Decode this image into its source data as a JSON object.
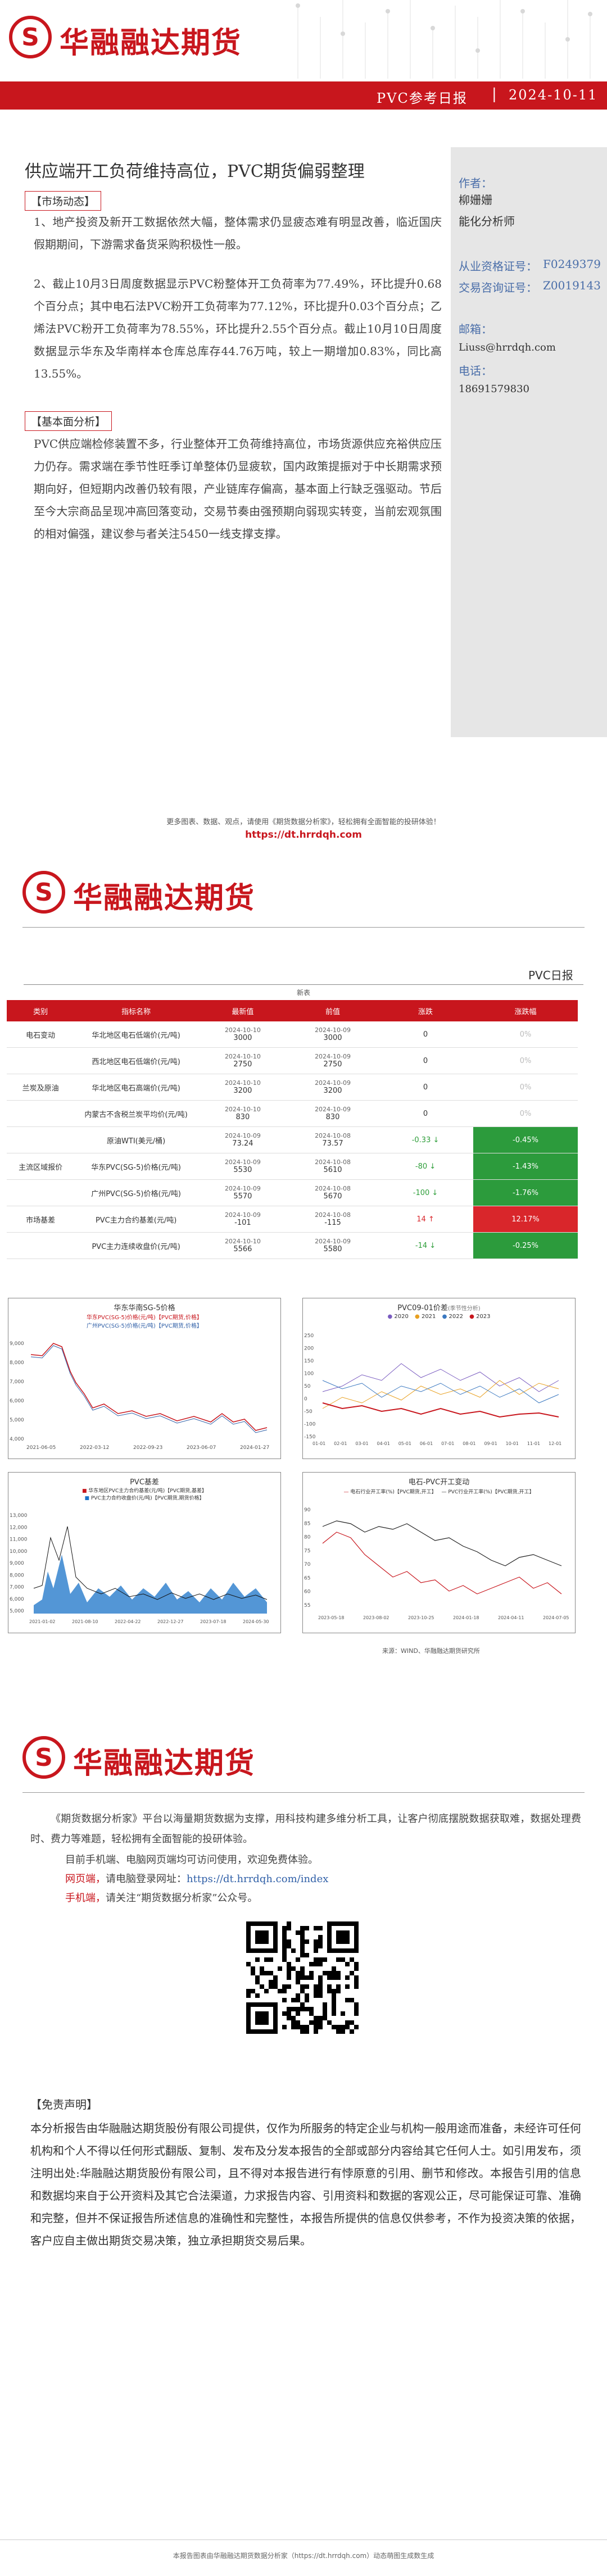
{
  "brand": {
    "name": "华融融达期货",
    "logo_letter": "S"
  },
  "report_bar": {
    "title": "PVC参考日报",
    "separator": "|",
    "date": "2024-10-11"
  },
  "article": {
    "title": "供应端开工负荷维持高位，PVC期货偏弱整理",
    "section1": "【市场动态】",
    "p1": "1、地产投资及新开工数据依然大幅，整体需求仍显疲态难有明显改善，临近国庆假期期间，下游需求备货采购积极性一般。",
    "p2": "2、截止10月3日周度数据显示PVC粉整体开工负荷率为77.49%，环比提升0.68个百分点；其中电石法PVC粉开工负荷率为77.12%，环比提升0.03个百分点；乙烯法PVC粉开工负荷率为78.55%，环比提升2.55个百分点。截止10月10日周度数据显示华东及华南样本仓库总库存44.76万吨，较上一期增加0.83%，同比高13.55%。",
    "section2": "【基本面分析】",
    "p3": "PVC供应端检修装置不多，行业整体开工负荷维持高位，市场货源供应充裕供应压力仍存。需求端在季节性旺季订单整体仍显疲软，国内政策提振对于中长期需求预期向好，但短期内改善仍较有限，产业链库存偏高，基本面上行缺乏强驱动。节后至今大宗商品呈现冲高回落变动，交易节奏由强预期向弱现实转变，当前宏观氛围的相对偏强，建议参与者关注5450一线支撑支撑。"
  },
  "analyst": {
    "author_label": "作者：",
    "author": "柳姗姗",
    "role": "能化分析师",
    "qual_label": "从业资格证号：",
    "qual_no": "F0249379",
    "consult_label": "交易咨询证号：",
    "consult_no": "Z0019143",
    "email_label": "邮箱：",
    "email": "Liuss@hrrdqh.com",
    "phone_label": "电话：",
    "phone": "18691579830"
  },
  "promo": {
    "line": "更多图表、数据、观点，请使用《期货数据分析家》，轻松拥有全面智能的投研体验！",
    "url": "https://dt.hrrdqh.com"
  },
  "page2": {
    "daily_title": "PVC日报",
    "table_headers": [
      "类别",
      "指标名称",
      "最新值",
      "前值",
      "涨跌",
      "涨跌幅"
    ],
    "new_label": "新表",
    "rows": [
      {
        "cat": "电石变动",
        "name": "华北地区电石低端价(元/吨)",
        "d1": "2024-10-10",
        "v1": "3000",
        "d2": "2024-10-09",
        "v2": "3000",
        "chg": "0",
        "pct": "0%"
      },
      {
        "cat": "",
        "name": "西北地区电石低端价(元/吨)",
        "d1": "2024-10-10",
        "v1": "2750",
        "d2": "2024-10-09",
        "v2": "2750",
        "chg": "0",
        "pct": "0%"
      },
      {
        "cat": "兰炭及原油",
        "name": "华北地区电石高端价(元/吨)",
        "d1": "2024-10-10",
        "v1": "3200",
        "d2": "2024-10-09",
        "v2": "3200",
        "chg": "0",
        "pct": "0%"
      },
      {
        "cat": "",
        "name": "内蒙古不含税兰炭平均价(元/吨)",
        "d1": "2024-10-10",
        "v1": "830",
        "d2": "2024-10-09",
        "v2": "830",
        "chg": "0",
        "pct": "0%"
      },
      {
        "cat": "",
        "name": "原油WTI(美元/桶)",
        "d1": "2024-10-09",
        "v1": "73.24",
        "d2": "2024-10-08",
        "v2": "73.57",
        "chg": "-0.33",
        "pct": "-0.45%"
      },
      {
        "cat": "主流区域报价",
        "name": "华东PVC(SG-5)价格(元/吨)",
        "d1": "2024-10-09",
        "v1": "5530",
        "d2": "2024-10-08",
        "v2": "5610",
        "chg": "-80",
        "pct": "-1.43%"
      },
      {
        "cat": "",
        "name": "广州PVC(SG-5)价格(元/吨)",
        "d1": "2024-10-09",
        "v1": "5570",
        "d2": "2024-10-08",
        "v2": "5670",
        "chg": "-100",
        "pct": "-1.76%"
      },
      {
        "cat": "市场基差",
        "name": "PVC主力合约基差(元/吨)",
        "d1": "2024-10-09",
        "v1": "-101",
        "d2": "2024-10-08",
        "v2": "-115",
        "chg": "14",
        "pct": "12.17%"
      },
      {
        "cat": "",
        "name": "PVC主力连续收盘价(元/吨)",
        "d1": "2024-10-10",
        "v1": "5566",
        "d2": "2024-10-09",
        "v2": "5580",
        "chg": "-14",
        "pct": "-0.25%"
      }
    ],
    "chart1_title": "华东华南SG-5价格",
    "chart1_legend": [
      "华东PVC(SG-5)价格(元/吨)【PVC期货,价格】",
      "广州PVC(SG-5)价格(元/吨)【PVC期货,价格】"
    ],
    "chart1_yticks": [
      "9,000",
      "8,000",
      "7,000",
      "6,000",
      "5,000",
      "4,000"
    ],
    "chart1_xticks": [
      "2021-06-05",
      "2022-03-12",
      "2022-09-23",
      "2023-06-07",
      "2024-01-27"
    ],
    "chart2_title": "PVC09-01价差",
    "chart2_sub": "(季节性分析)",
    "chart2_legend": [
      "2020",
      "2021",
      "2022",
      "2023"
    ],
    "chart2_yticks": [
      "250",
      "200",
      "150",
      "100",
      "50",
      "0",
      "-50",
      "-100",
      "-150"
    ],
    "chart2_xticks": [
      "01-01",
      "02-01",
      "03-01",
      "04-01",
      "05-01",
      "06-01",
      "07-01",
      "08-01",
      "09-01",
      "10-01",
      "11-01",
      "12-01"
    ],
    "chart3_title": "PVC基差",
    "chart3_legend": [
      "华东地区PVC主力合约基差(元/吨)【PVC期货,基差】",
      "PVC主力合约收盘价(元/吨)【PVC期货,期货价格】"
    ],
    "chart3_yticks": [
      "13,000",
      "12,000",
      "11,000",
      "10,000",
      "9,000",
      "8,000",
      "7,000",
      "6,000",
      "5,000"
    ],
    "chart3_xticks": [
      "2021-01-02",
      "2021-08-10",
      "2022-04-22",
      "2022-12-27",
      "2023-07-18",
      "2024-05-30"
    ],
    "chart4_title": "电石-PVC开工变动",
    "chart4_legend": [
      "电石行业开工率(%)【PVC期货,开工】",
      "PVC行业开工率(%)【PVC期货,开工】"
    ],
    "chart4_yticks": [
      "90",
      "85",
      "80",
      "75",
      "70",
      "65",
      "60",
      "55"
    ],
    "chart4_xticks": [
      "2023-05-18",
      "2023-08-02",
      "2023-10-25",
      "2024-01-18",
      "2024-04-11",
      "2024-07-05"
    ],
    "source": "来源：WIND、华融融达期货研究所"
  },
  "page3": {
    "intro1": "《期货数据分析家》平台以海量期货数据为支撑，用科技构建多维分析工具，让客户彻底摆脱数据获取难，数据处理费时、费力等难题，轻松拥有全面智能的投研体验。",
    "intro2": "目前手机端、电脑网页端均可访问使用，欢迎免费体验。",
    "web_label": "网页端，",
    "web_text": "请电脑登录网址：",
    "web_url": "https://dt.hrrdqh.com/index",
    "mobile_label": "手机端，",
    "mobile_text": "请关注“期货数据分析家”公众号。",
    "disclaimer_title": "【免责声明】",
    "disclaimer": "本分析报告由华融融达期货股份有限公司提供，仅作为所服务的特定企业与机构一般用途而准备，未经许可任何机构和个人不得以任何形式翻版、复制、发布及分发本报告的全部或部分内容给其它任何人士。如引用发布，须注明出处:华融融达期货股份有限公司，且不得对本报告进行有悖原意的引用、删节和修改。本报告引用的信息和数据均来自于公开资料及其它合法渠道，力求报告内容、引用资料和数据的客观公正，尽可能保证可靠、准确和完整，但并不保证报告所述信息的准确性和完整性，本报告所提供的信息仅供参考，不作为投资决策的依据，客户应自主做出期货交易决策，独立承担期货交易后果。",
    "footer": "本报告图表由华融融达期货数据分析家（https://dt.hrrdqh.com）动态萌图生成数生成"
  }
}
